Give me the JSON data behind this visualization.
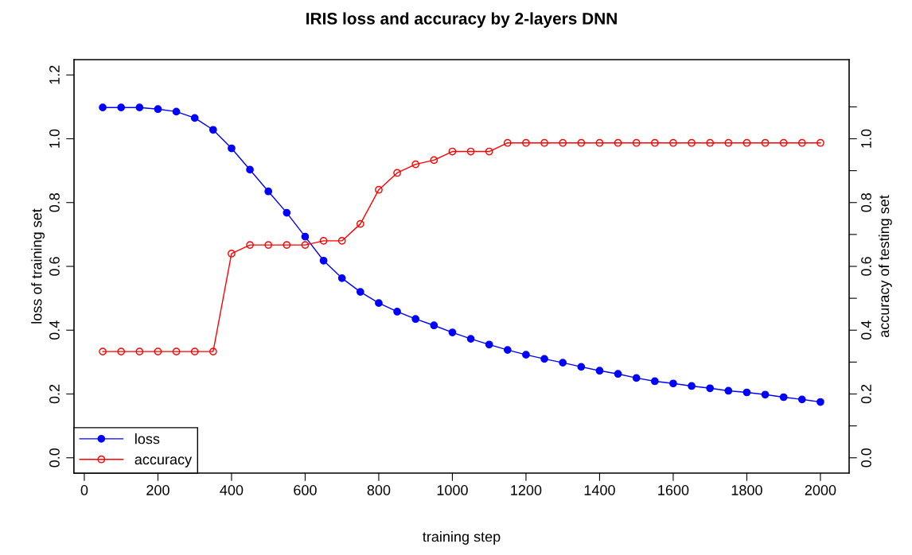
{
  "chart_data": {
    "type": "line",
    "title": "IRIS loss and accuracy by 2-layers DNN",
    "xlabel": "training step",
    "ylabel": "loss of training set",
    "y2label": "accuracy of testing set",
    "x": [
      50,
      100,
      150,
      200,
      250,
      300,
      350,
      400,
      450,
      500,
      550,
      600,
      650,
      700,
      750,
      800,
      850,
      900,
      950,
      1000,
      1050,
      1100,
      1150,
      1200,
      1250,
      1300,
      1350,
      1400,
      1450,
      1500,
      1550,
      1600,
      1650,
      1700,
      1750,
      1800,
      1850,
      1900,
      1950,
      2000
    ],
    "series": [
      {
        "name": "loss",
        "color": "#0000ff",
        "marker": "circle",
        "values": [
          1.098,
          1.098,
          1.098,
          1.093,
          1.085,
          1.065,
          1.028,
          0.97,
          0.903,
          0.835,
          0.768,
          0.693,
          0.618,
          0.563,
          0.52,
          0.485,
          0.458,
          0.435,
          0.415,
          0.393,
          0.373,
          0.355,
          0.338,
          0.323,
          0.31,
          0.298,
          0.285,
          0.273,
          0.263,
          0.25,
          0.24,
          0.233,
          0.225,
          0.218,
          0.21,
          0.205,
          0.198,
          0.19,
          0.183,
          0.175
        ]
      },
      {
        "name": "accuracy",
        "color": "#ff0000",
        "marker": "circle",
        "axis": "y2",
        "values": [
          0.333,
          0.333,
          0.333,
          0.333,
          0.333,
          0.333,
          0.333,
          0.64,
          0.667,
          0.667,
          0.667,
          0.667,
          0.68,
          0.68,
          0.733,
          0.84,
          0.893,
          0.92,
          0.933,
          0.96,
          0.96,
          0.96,
          0.987,
          0.987,
          0.987,
          0.987,
          0.987,
          0.987,
          0.987,
          0.987,
          0.987,
          0.987,
          0.987,
          0.987,
          0.987,
          0.987,
          0.987,
          0.987,
          0.987,
          0.987
        ]
      }
    ],
    "xlim": [
      -28,
      2078
    ],
    "xticks": [
      0,
      200,
      400,
      600,
      800,
      1000,
      1200,
      1400,
      1600,
      1800,
      2000
    ],
    "ylim": [
      -0.048,
      1.248
    ],
    "yticks": [
      {
        "value": 0,
        "label": "0.0"
      },
      {
        "value": 0.2,
        "label": "0.2"
      },
      {
        "value": 0.4,
        "label": "0.4"
      },
      {
        "value": 0.6,
        "label": "0.6"
      },
      {
        "value": 0.8,
        "label": "0.8"
      },
      {
        "value": 1.0,
        "label": "1.0"
      },
      {
        "value": 1.2,
        "label": "1.2"
      }
    ],
    "y2lim": [
      -0.048,
      1.248
    ],
    "y2ticks": [
      {
        "value": 0,
        "label": "0.0"
      },
      {
        "value": 0.1,
        "label": null
      },
      {
        "value": 0.2,
        "label": "0.2"
      },
      {
        "value": 0.3,
        "label": null
      },
      {
        "value": 0.4,
        "label": "0.4"
      },
      {
        "value": 0.5,
        "label": null
      },
      {
        "value": 0.6,
        "label": "0.6"
      },
      {
        "value": 0.7,
        "label": null
      },
      {
        "value": 0.8,
        "label": "0.8"
      },
      {
        "value": 0.9,
        "label": null
      },
      {
        "value": 1.0,
        "label": "1.0"
      },
      {
        "value": 1.1,
        "label": null
      }
    ],
    "grid": false,
    "legend": "bottom left"
  }
}
